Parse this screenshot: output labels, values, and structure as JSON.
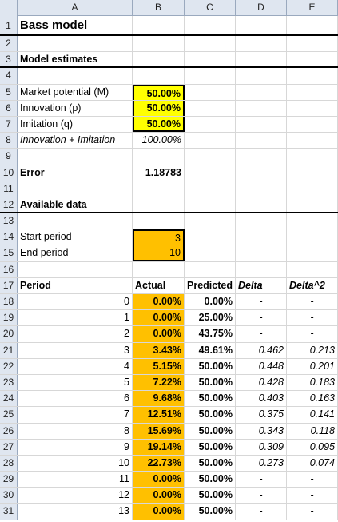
{
  "columns": [
    "A",
    "B",
    "C",
    "D",
    "E"
  ],
  "rows": [
    {
      "n": "1",
      "A": "Bass model",
      "B": "",
      "C": "",
      "D": "",
      "E": ""
    },
    {
      "n": "2",
      "A": "",
      "B": "",
      "C": "",
      "D": "",
      "E": ""
    },
    {
      "n": "3",
      "A": "Model estimates",
      "B": "",
      "C": "",
      "D": "",
      "E": ""
    },
    {
      "n": "4",
      "A": "",
      "B": "",
      "C": "",
      "D": "",
      "E": ""
    },
    {
      "n": "5",
      "A": "Market potential (M)",
      "B": "50.00%",
      "C": "",
      "D": "",
      "E": ""
    },
    {
      "n": "6",
      "A": "Innovation (p)",
      "B": "50.00%",
      "C": "",
      "D": "",
      "E": ""
    },
    {
      "n": "7",
      "A": "Imitation (q)",
      "B": "50.00%",
      "C": "",
      "D": "",
      "E": ""
    },
    {
      "n": "8",
      "A": "Innovation + Imitation",
      "B": "100.00%",
      "C": "",
      "D": "",
      "E": ""
    },
    {
      "n": "9",
      "A": "",
      "B": "",
      "C": "",
      "D": "",
      "E": ""
    },
    {
      "n": "10",
      "A": "Error",
      "B": "1.18783",
      "C": "",
      "D": "",
      "E": ""
    },
    {
      "n": "11",
      "A": "",
      "B": "",
      "C": "",
      "D": "",
      "E": ""
    },
    {
      "n": "12",
      "A": "Available data",
      "B": "",
      "C": "",
      "D": "",
      "E": ""
    },
    {
      "n": "13",
      "A": "",
      "B": "",
      "C": "",
      "D": "",
      "E": ""
    },
    {
      "n": "14",
      "A": "Start period",
      "B": "3",
      "C": "",
      "D": "",
      "E": ""
    },
    {
      "n": "15",
      "A": "End period",
      "B": "10",
      "C": "",
      "D": "",
      "E": ""
    },
    {
      "n": "16",
      "A": "",
      "B": "",
      "C": "",
      "D": "",
      "E": ""
    },
    {
      "n": "17",
      "A": "Period",
      "B": "Actual",
      "C": "Predicted",
      "D": "Delta",
      "E": "Delta^2"
    },
    {
      "n": "18",
      "A": "0",
      "B": "0.00%",
      "C": "0.00%",
      "D": "-",
      "E": "-"
    },
    {
      "n": "19",
      "A": "1",
      "B": "0.00%",
      "C": "25.00%",
      "D": "-",
      "E": "-"
    },
    {
      "n": "20",
      "A": "2",
      "B": "0.00%",
      "C": "43.75%",
      "D": "-",
      "E": "-"
    },
    {
      "n": "21",
      "A": "3",
      "B": "3.43%",
      "C": "49.61%",
      "D": "0.462",
      "E": "0.213"
    },
    {
      "n": "22",
      "A": "4",
      "B": "5.15%",
      "C": "50.00%",
      "D": "0.448",
      "E": "0.201"
    },
    {
      "n": "23",
      "A": "5",
      "B": "7.22%",
      "C": "50.00%",
      "D": "0.428",
      "E": "0.183"
    },
    {
      "n": "24",
      "A": "6",
      "B": "9.68%",
      "C": "50.00%",
      "D": "0.403",
      "E": "0.163"
    },
    {
      "n": "25",
      "A": "7",
      "B": "12.51%",
      "C": "50.00%",
      "D": "0.375",
      "E": "0.141"
    },
    {
      "n": "26",
      "A": "8",
      "B": "15.69%",
      "C": "50.00%",
      "D": "0.343",
      "E": "0.118"
    },
    {
      "n": "27",
      "A": "9",
      "B": "19.14%",
      "C": "50.00%",
      "D": "0.309",
      "E": "0.095"
    },
    {
      "n": "28",
      "A": "10",
      "B": "22.73%",
      "C": "50.00%",
      "D": "0.273",
      "E": "0.074"
    },
    {
      "n": "29",
      "A": "11",
      "B": "0.00%",
      "C": "50.00%",
      "D": "-",
      "E": "-"
    },
    {
      "n": "30",
      "A": "12",
      "B": "0.00%",
      "C": "50.00%",
      "D": "-",
      "E": "-"
    },
    {
      "n": "31",
      "A": "13",
      "B": "0.00%",
      "C": "50.00%",
      "D": "-",
      "E": "-"
    }
  ],
  "colors": {
    "input_yellow": "#ffff00",
    "data_orange": "#ffc000",
    "header_bg": "#dfe6f0"
  }
}
